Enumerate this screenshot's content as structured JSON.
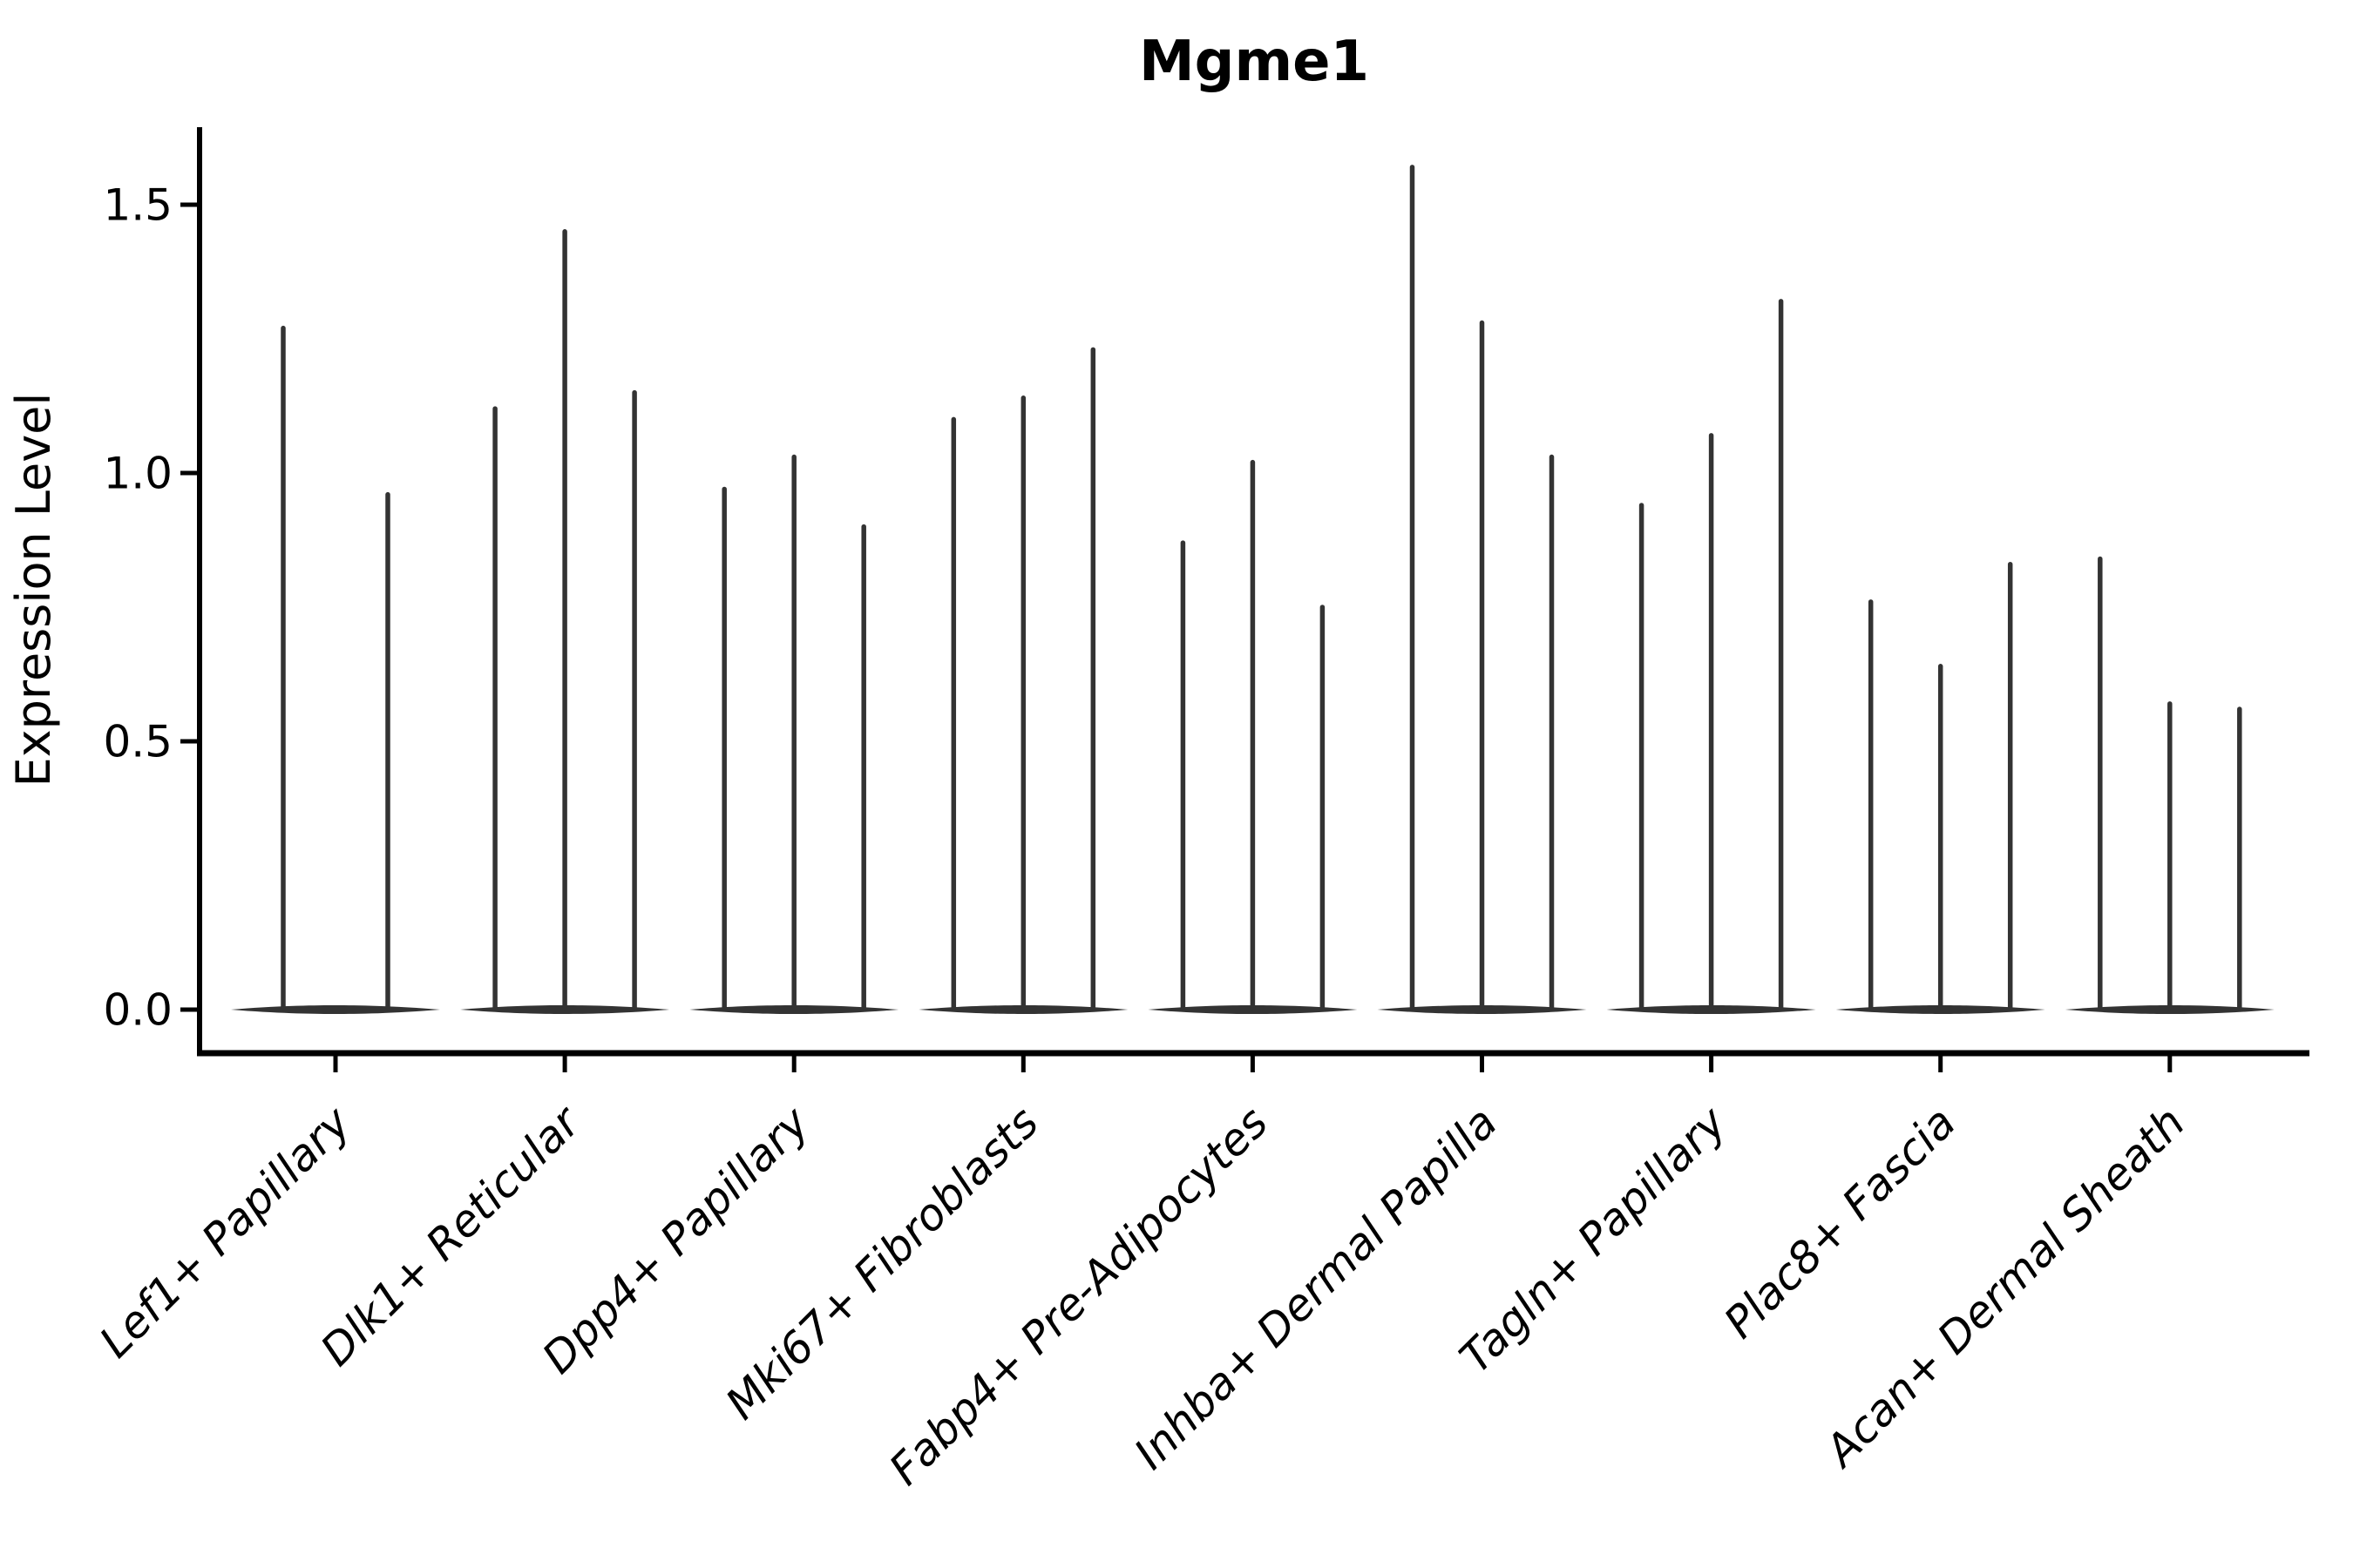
{
  "figure": {
    "background_color": "#ffffff",
    "text_color": "#000000"
  },
  "chart_data": {
    "type": "violin",
    "title": "Mgme1",
    "xlabel": "",
    "ylabel": "Expression Level",
    "y_ticks": [
      0.0,
      0.5,
      1.0,
      1.5
    ],
    "y_tick_labels": [
      "0.0",
      "0.5",
      "1.0",
      "1.5"
    ],
    "ylim": [
      -0.08,
      1.65
    ],
    "grid": false,
    "legend": "none",
    "violin_color": "#333333",
    "axis_color": "#000000",
    "shape_note": "each violin is a flat wide mass at expression 0 with a thin vertical spike reaching the listed maximum",
    "categories": [
      "Lef1+ Papillary",
      "Dlk1+ Reticular",
      "Dpp4+ Papillary",
      "Mki67+ Fibroblasts",
      "Fabp4+ Pre-Adipocytes",
      "Inhba+ Dermal Papilla",
      "Tagln+ Papillary",
      "Plac8+ Fascia",
      "Acan+ Dermal Sheath"
    ],
    "groups": [
      {
        "category": "Lef1+ Papillary",
        "violin_maxima": [
          1.27,
          0.96
        ]
      },
      {
        "category": "Dlk1+ Reticular",
        "violin_maxima": [
          1.12,
          1.45,
          1.15
        ]
      },
      {
        "category": "Dpp4+ Papillary",
        "violin_maxima": [
          0.97,
          1.03,
          0.9
        ]
      },
      {
        "category": "Mki67+ Fibroblasts",
        "violin_maxima": [
          1.1,
          1.14,
          1.23
        ]
      },
      {
        "category": "Fabp4+ Pre-Adipocytes",
        "violin_maxima": [
          0.87,
          1.02,
          0.75
        ]
      },
      {
        "category": "Inhba+ Dermal Papilla",
        "violin_maxima": [
          1.57,
          1.28,
          1.03
        ]
      },
      {
        "category": "Tagln+ Papillary",
        "violin_maxima": [
          0.94,
          1.07,
          1.32
        ]
      },
      {
        "category": "Plac8+ Fascia",
        "violin_maxima": [
          0.76,
          0.64,
          0.83
        ]
      },
      {
        "category": "Acan+ Dermal Sheath",
        "violin_maxima": [
          0.84,
          0.57,
          0.56
        ]
      }
    ]
  }
}
